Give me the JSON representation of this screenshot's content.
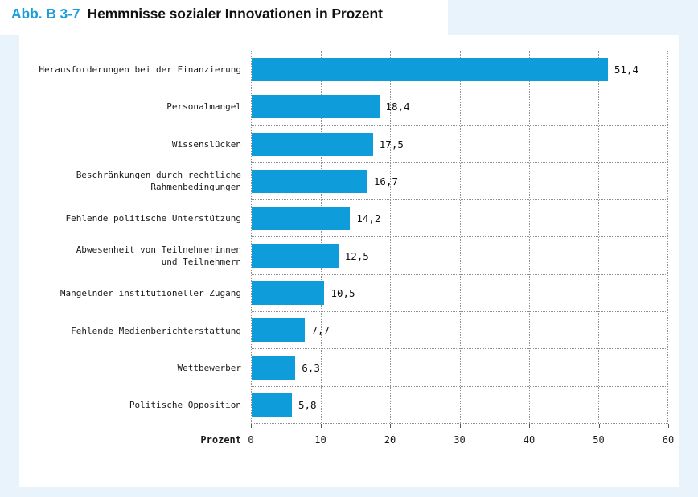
{
  "title": {
    "figure_label": "Abb. B 3-7",
    "text": "Hemmnisse sozialer Innovationen in Prozent"
  },
  "axis": {
    "label": "Prozent",
    "tick_labels": [
      "0",
      "10",
      "20",
      "30",
      "40",
      "50",
      "60"
    ]
  },
  "chart_data": {
    "type": "bar",
    "orientation": "horizontal",
    "title": "Hemmnisse sozialer Innovationen in Prozent",
    "categories": [
      "Herausforderungen bei der Finanzierung",
      "Personalmangel",
      "Wissenslücken",
      "Beschränkungen durch rechtliche\nRahmenbedingungen",
      "Fehlende politische Unterstützung",
      "Abwesenheit von Teilnehmerinnen\nund Teilnehmern",
      "Mangelnder institutioneller Zugang",
      "Fehlende Medienberichterstattung",
      "Wettbewerber",
      "Politische Opposition"
    ],
    "values": [
      51.4,
      18.4,
      17.5,
      16.7,
      14.2,
      12.5,
      10.5,
      7.7,
      6.3,
      5.8
    ],
    "value_labels": [
      "51,4",
      "18,4",
      "17,5",
      "16,7",
      "14,2",
      "12,5",
      "10,5",
      "7,7",
      "6,3",
      "5,8"
    ],
    "xlabel": "Prozent",
    "xlim": [
      0,
      60
    ],
    "xticks": [
      0,
      10,
      20,
      30,
      40,
      50,
      60
    ],
    "grid": "dotted",
    "legend": "none"
  },
  "colors": {
    "bar_blue": "#0e9cdb",
    "accent_blue": "#1b9dd9",
    "page_background": "#e9f3fb",
    "grid_gray": "#8f8f8f",
    "text": "#1a1a1a"
  }
}
